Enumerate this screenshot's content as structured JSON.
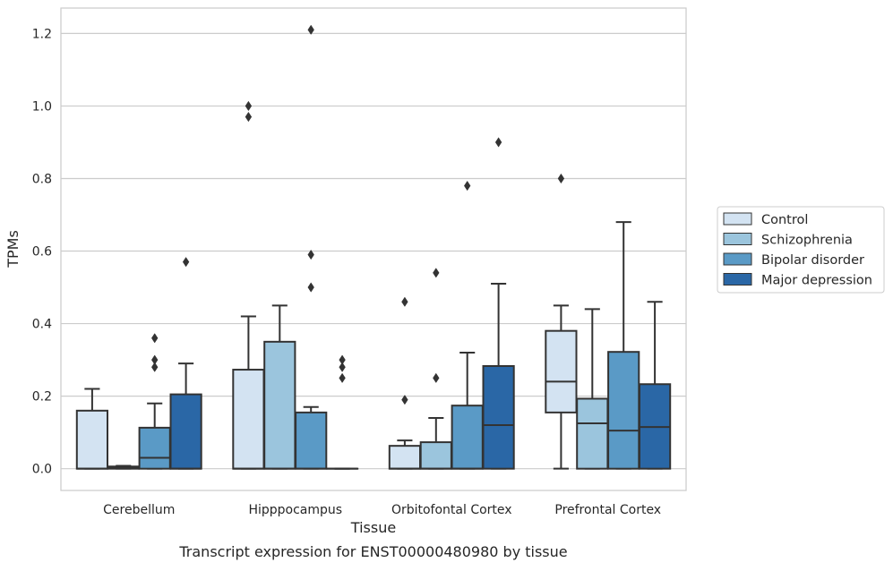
{
  "chart_data": {
    "type": "box",
    "title": "",
    "caption": "Transcript expression for ENST00000480980 by tissue",
    "xlabel": "Tissue",
    "ylabel": "TPMs",
    "ylim": [
      -0.06,
      1.27
    ],
    "yticks": [
      0.0,
      0.2,
      0.4,
      0.6,
      0.8,
      1.0,
      1.2
    ],
    "ytick_labels": [
      "0.0",
      "0.2",
      "0.4",
      "0.6",
      "0.8",
      "1.0",
      "1.2"
    ],
    "grid": "horizontal",
    "legend_position": "right",
    "categories": [
      "Cerebellum",
      "Hipppocampus",
      "Orbitofontal Cortex",
      "Prefrontal Cortex"
    ],
    "series": [
      {
        "name": "Control",
        "color": "#d3e3f2",
        "boxes": [
          {
            "whislo": 0.0,
            "q1": 0.0,
            "med": 0.0,
            "q3": 0.16,
            "whishi": 0.22,
            "fliers": []
          },
          {
            "whislo": 0.0,
            "q1": 0.0,
            "med": 0.0,
            "q3": 0.273,
            "whishi": 0.42,
            "fliers": [
              0.97,
              1.0
            ]
          },
          {
            "whislo": 0.0,
            "q1": 0.0,
            "med": 0.0,
            "q3": 0.063,
            "whishi": 0.078,
            "fliers": [
              0.19,
              0.46
            ]
          },
          {
            "whislo": 0.0,
            "q1": 0.155,
            "med": 0.24,
            "q3": 0.38,
            "whishi": 0.45,
            "fliers": [
              0.8
            ]
          }
        ]
      },
      {
        "name": "Schizophrenia",
        "color": "#9bc5dd",
        "boxes": [
          {
            "whislo": 0.0,
            "q1": 0.0,
            "med": 0.003,
            "q3": 0.006,
            "whishi": 0.008,
            "fliers": []
          },
          {
            "whislo": 0.0,
            "q1": 0.0,
            "med": 0.0,
            "q3": 0.35,
            "whishi": 0.45,
            "fliers": []
          },
          {
            "whislo": 0.0,
            "q1": 0.0,
            "med": 0.0,
            "q3": 0.073,
            "whishi": 0.14,
            "fliers": [
              0.25,
              0.54
            ]
          },
          {
            "whislo": 0.0,
            "q1": 0.0,
            "med": 0.125,
            "q3": 0.193,
            "whishi": 0.44,
            "fliers": []
          }
        ]
      },
      {
        "name": "Bipolar disorder",
        "color": "#5a9ac6",
        "boxes": [
          {
            "whislo": 0.0,
            "q1": 0.0,
            "med": 0.03,
            "q3": 0.113,
            "whishi": 0.18,
            "fliers": [
              0.28,
              0.3,
              0.36
            ]
          },
          {
            "whislo": 0.0,
            "q1": 0.0,
            "med": 0.0,
            "q3": 0.155,
            "whishi": 0.17,
            "fliers": [
              0.5,
              0.59,
              1.21
            ]
          },
          {
            "whislo": 0.0,
            "q1": 0.0,
            "med": 0.0,
            "q3": 0.174,
            "whishi": 0.32,
            "fliers": [
              0.78
            ]
          },
          {
            "whislo": 0.0,
            "q1": 0.0,
            "med": 0.105,
            "q3": 0.322,
            "whishi": 0.68,
            "fliers": []
          }
        ]
      },
      {
        "name": "Major depression",
        "color": "#2a67a6",
        "boxes": [
          {
            "whislo": 0.0,
            "q1": 0.0,
            "med": 0.0,
            "q3": 0.205,
            "whishi": 0.29,
            "fliers": [
              0.57
            ]
          },
          {
            "whislo": 0.0,
            "q1": 0.0,
            "med": 0.0,
            "q3": 0.0,
            "whishi": 0.0,
            "fliers": [
              0.25,
              0.28,
              0.3
            ]
          },
          {
            "whislo": 0.0,
            "q1": 0.0,
            "med": 0.12,
            "q3": 0.283,
            "whishi": 0.51,
            "fliers": [
              0.9
            ]
          },
          {
            "whislo": 0.0,
            "q1": 0.0,
            "med": 0.115,
            "q3": 0.233,
            "whishi": 0.46,
            "fliers": []
          }
        ]
      }
    ]
  }
}
